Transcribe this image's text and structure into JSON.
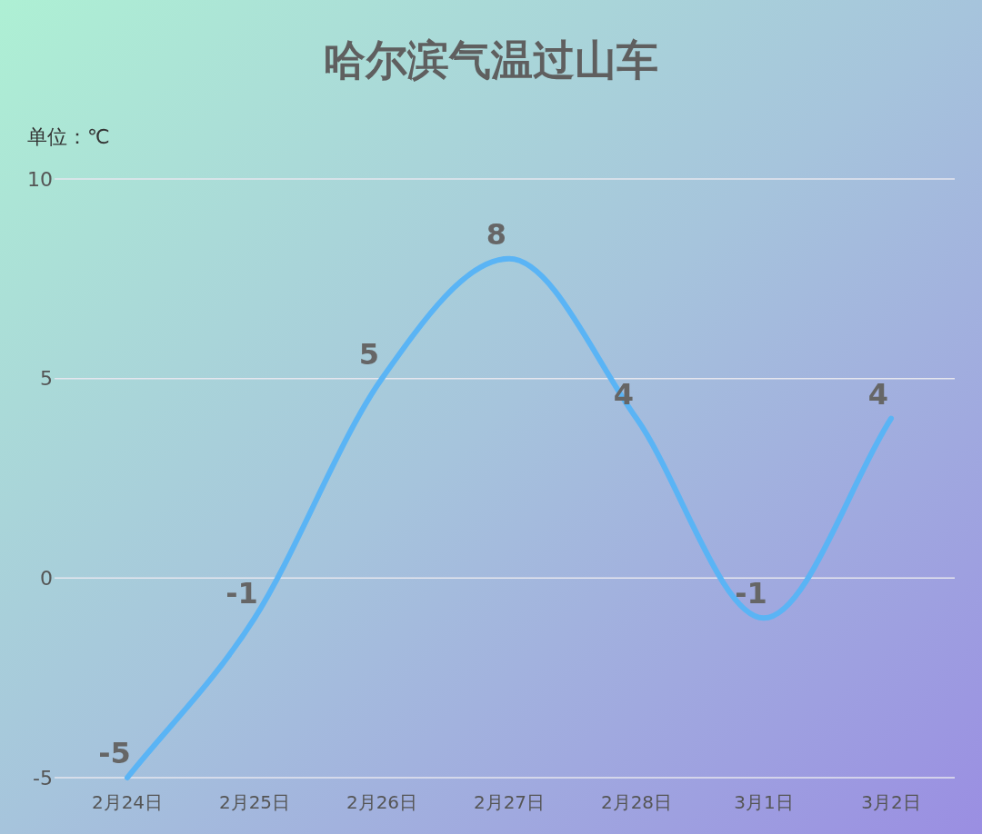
{
  "chart_data": {
    "type": "line",
    "title": "哈尔滨气温过山车",
    "ylabel": "单位：℃",
    "categories": [
      "2月24日",
      "2月25日",
      "2月26日",
      "2月27日",
      "2月28日",
      "3月1日",
      "3月2日"
    ],
    "series": [
      {
        "color": "#5ab4f5",
        "values": [
          -5,
          -1,
          5,
          8,
          4,
          -1,
          4
        ]
      }
    ],
    "ylim": [
      -5,
      10
    ],
    "yticks": [
      -5,
      0,
      5,
      10
    ],
    "grid": "y",
    "data_labels": true
  }
}
